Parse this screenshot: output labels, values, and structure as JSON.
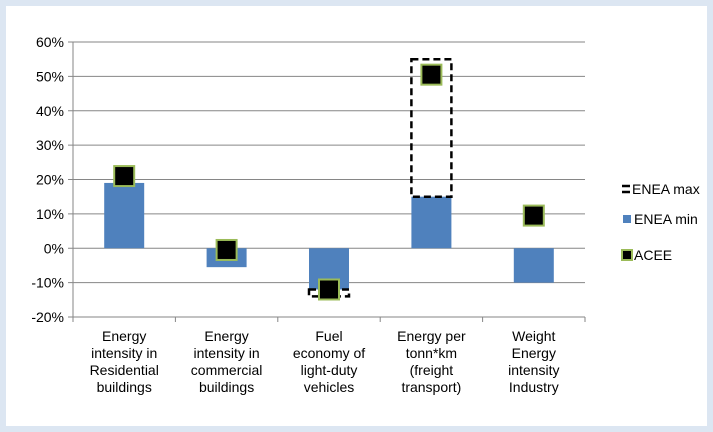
{
  "chart_data": {
    "type": "bar",
    "categories": [
      [
        "Energy",
        "intensity in",
        "Residential",
        "buildings"
      ],
      [
        "Energy",
        "intensity in",
        "commercial",
        "buildings"
      ],
      [
        "Fuel",
        "economy of",
        "light-duty",
        "vehicles"
      ],
      [
        "Energy per",
        "tonn*km",
        "(freight",
        "transport)"
      ],
      [
        "Weight",
        "Energy",
        "intensity",
        "Industry"
      ]
    ],
    "y_tick_labels": [
      "60%",
      "50%",
      "40%",
      "30%",
      "20%",
      "10%",
      "0%",
      "-10%",
      "-20%"
    ],
    "ylim": [
      -20,
      60
    ],
    "unit": "%",
    "grid": true,
    "legend_position": "right",
    "series": [
      {
        "name": "ENEA max",
        "kind": "dashed-range-box",
        "values": [
          null,
          null,
          -14,
          55,
          null
        ]
      },
      {
        "name": "ENEA min",
        "kind": "bar",
        "values": [
          19,
          -5.5,
          -12,
          15,
          -10
        ]
      },
      {
        "name": "ACEE",
        "kind": "square-marker",
        "values": [
          21,
          -0.5,
          -12,
          50.5,
          9.5
        ]
      }
    ],
    "colors": {
      "enea_min": "#4f81bd",
      "acee_fill": "#000000",
      "acee_border": "#9bbb59",
      "grid": "#868686",
      "background": "#dce6f2"
    }
  }
}
